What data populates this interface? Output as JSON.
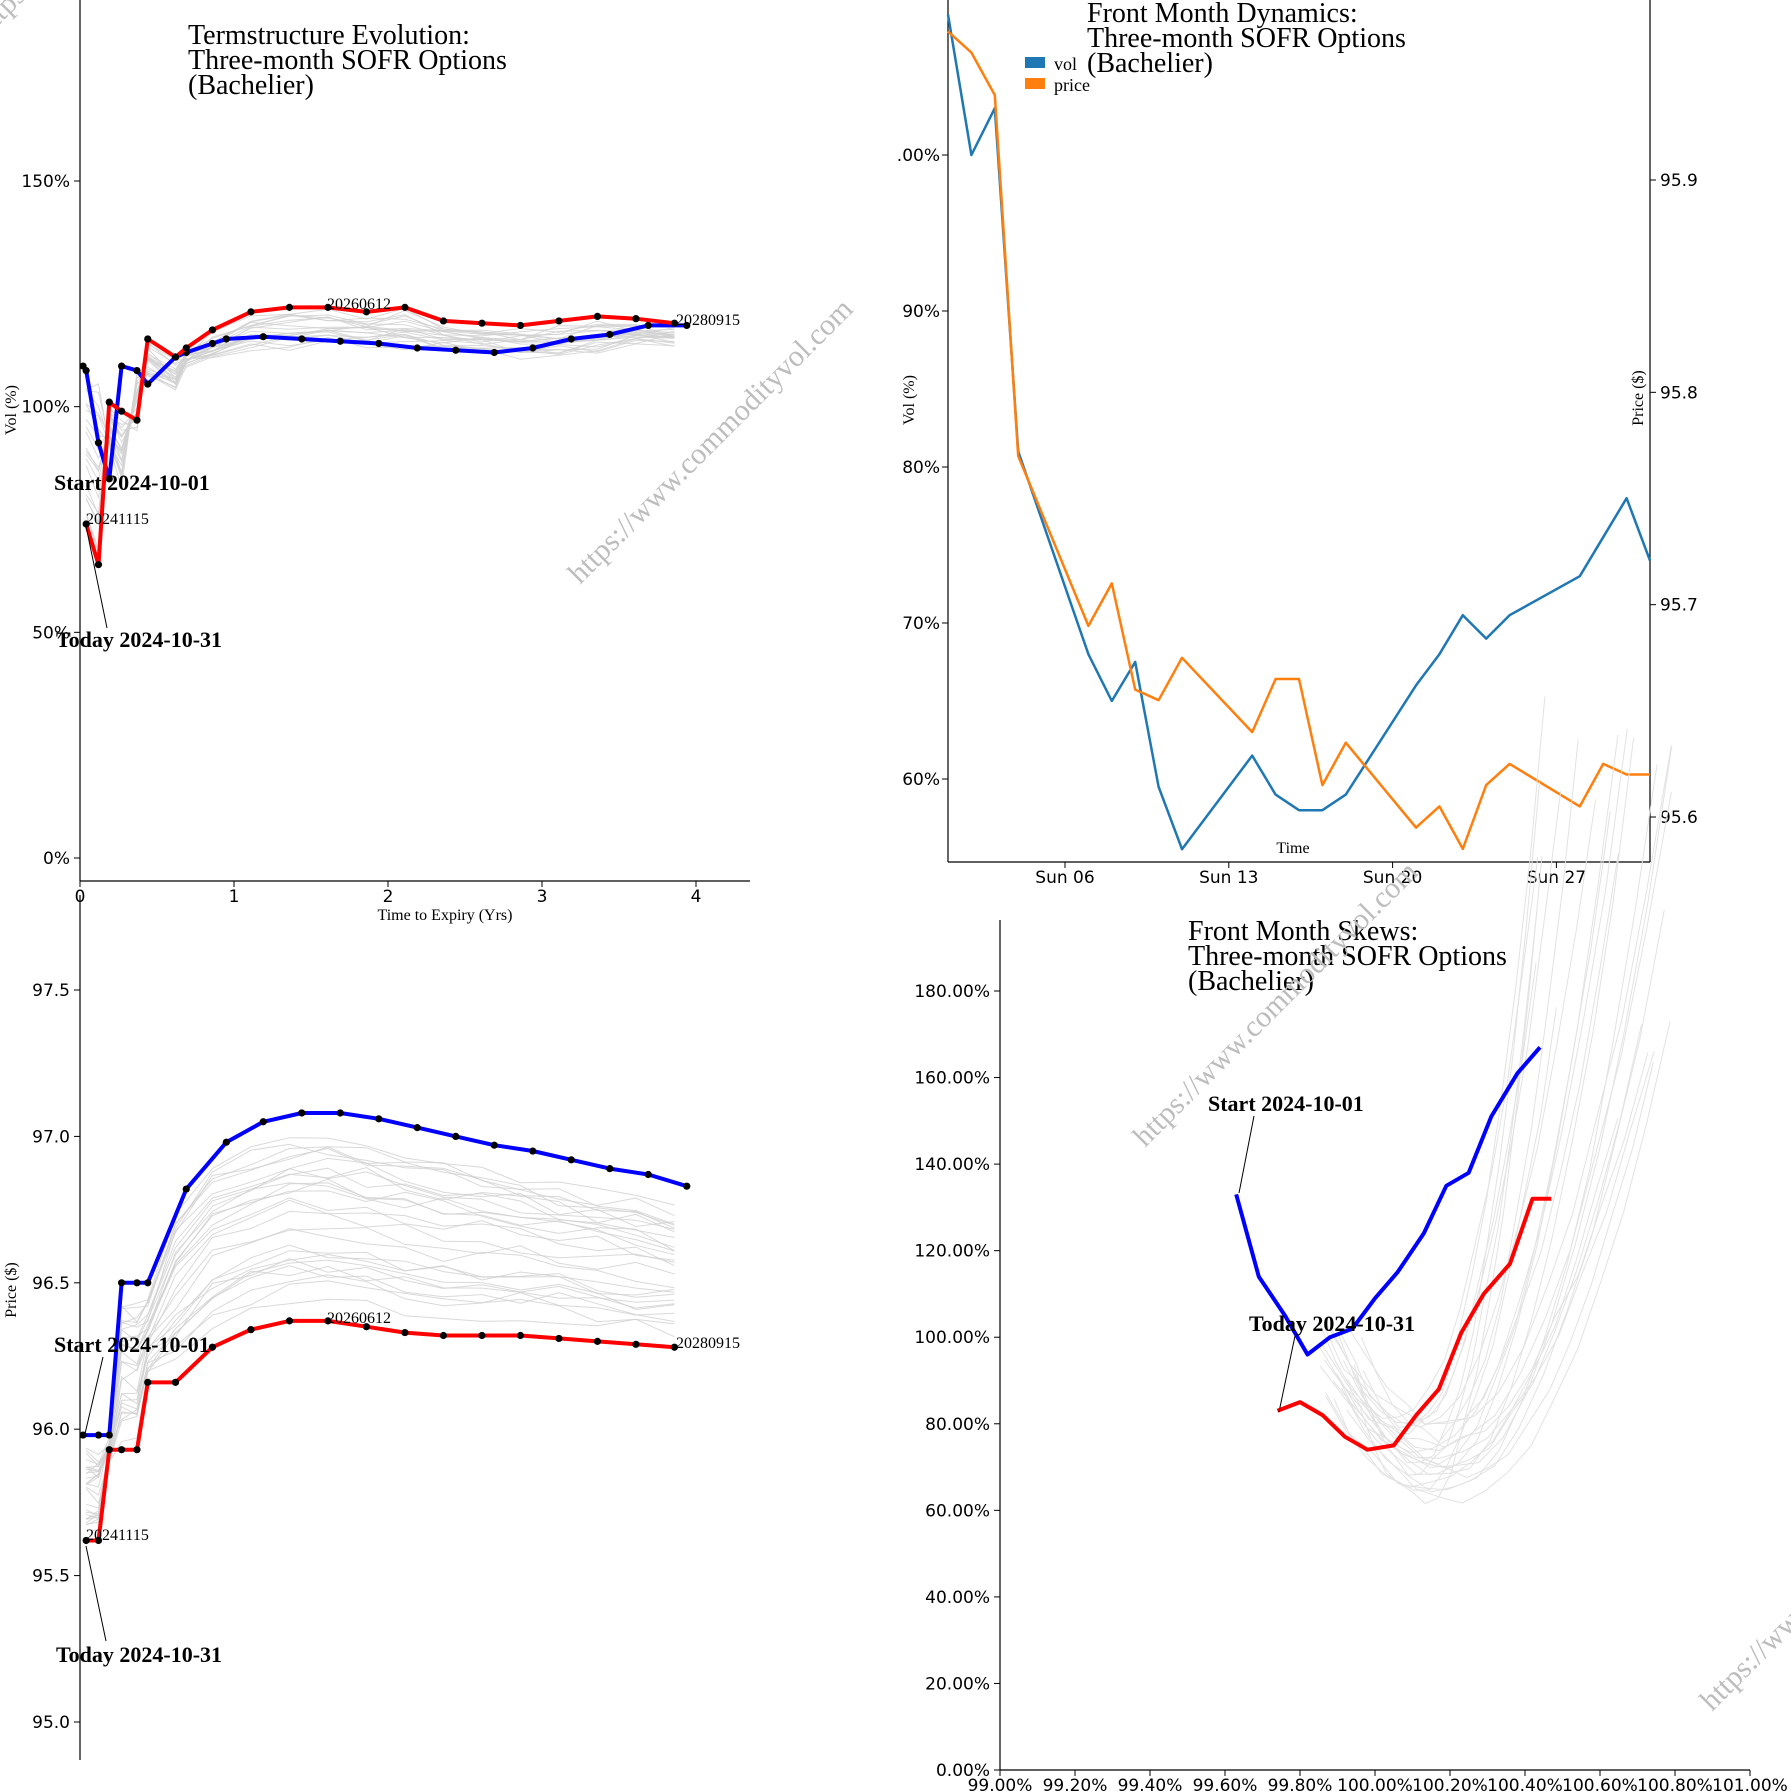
{
  "watermark": "https://www.commodityvol.com",
  "chart_data": [
    {
      "id": "vol_term",
      "type": "line",
      "title": [
        "Termstructure Evolution:",
        "Three-month SOFR Options",
        "(Bachelier)"
      ],
      "xlabel": "Time to Expiry (Yrs)",
      "ylabel": "Vol (%)",
      "xlim": [
        0,
        4.35
      ],
      "ylim": [
        0,
        1.9
      ],
      "xticks": [
        "0",
        "1",
        "2",
        "3",
        "4"
      ],
      "yticks": [
        "0%",
        "50%",
        "100%",
        "150%"
      ],
      "annotations": [
        "Start 2024-10-01",
        "Today 2024-10-31",
        "20241115",
        "20260612",
        "20280915"
      ],
      "series": [
        {
          "name": "Start 2024-10-01",
          "color": "#0000ff",
          "x": [
            0.02,
            0.04,
            0.12,
            0.19,
            0.27,
            0.37,
            0.44,
            0.62,
            0.69,
            0.86,
            0.95,
            1.19,
            1.44,
            1.69,
            1.94,
            2.19,
            2.44,
            2.69,
            2.94,
            3.19,
            3.44,
            3.69,
            3.94
          ],
          "y": [
            1.09,
            1.08,
            0.92,
            0.84,
            1.09,
            1.08,
            1.05,
            1.11,
            1.12,
            1.14,
            1.15,
            1.155,
            1.15,
            1.145,
            1.14,
            1.13,
            1.125,
            1.12,
            1.13,
            1.15,
            1.16,
            1.18,
            1.18
          ]
        },
        {
          "name": "Today 2024-10-31",
          "color": "#ff0000",
          "x": [
            0.04,
            0.12,
            0.19,
            0.27,
            0.37,
            0.44,
            0.62,
            0.69,
            0.86,
            1.11,
            1.36,
            1.61,
            1.86,
            2.11,
            2.36,
            2.61,
            2.86,
            3.11,
            3.36,
            3.61,
            3.86
          ],
          "y": [
            0.74,
            0.65,
            1.01,
            0.99,
            0.97,
            1.15,
            1.11,
            1.13,
            1.17,
            1.21,
            1.22,
            1.22,
            1.21,
            1.22,
            1.19,
            1.185,
            1.18,
            1.19,
            1.2,
            1.195,
            1.185
          ]
        }
      ]
    },
    {
      "id": "front_dynamics",
      "type": "line",
      "title": [
        "Front Month Dynamics:",
        "Three-month SOFR Options",
        "(Bachelier)"
      ],
      "xlabel": "Time",
      "ylabel": "Vol (%)",
      "y2label": "Price ($)",
      "xticks": [
        "Sun 06",
        "Sun 13",
        "Sun 20",
        "Sun 27"
      ],
      "yticks": [
        ".00%",
        "90%",
        "80%",
        "70%",
        "60%"
      ],
      "y2ticks": [
        "95.9",
        "95.8",
        "95.7",
        "95.6"
      ],
      "legend": "top-left",
      "series": [
        {
          "name": "vol",
          "color": "#1f77b4",
          "axis": "left",
          "x": [
            "2024-10-01",
            "2024-10-02",
            "2024-10-03",
            "2024-10-04",
            "2024-10-07",
            "2024-10-08",
            "2024-10-09",
            "2024-10-10",
            "2024-10-11",
            "2024-10-14",
            "2024-10-15",
            "2024-10-16",
            "2024-10-17",
            "2024-10-18",
            "2024-10-21",
            "2024-10-22",
            "2024-10-23",
            "2024-10-24",
            "2024-10-25",
            "2024-10-28",
            "2024-10-29",
            "2024-10-30",
            "2024-10-31"
          ],
          "y": [
            1.09,
            1.0,
            1.03,
            0.81,
            0.68,
            0.65,
            0.675,
            0.595,
            0.555,
            0.615,
            0.59,
            0.58,
            0.58,
            0.59,
            0.66,
            0.68,
            0.705,
            0.69,
            0.705,
            0.73,
            0.755,
            0.78,
            0.74
          ]
        },
        {
          "name": "price",
          "color": "#ff7f0e",
          "axis": "right",
          "x": [
            "2024-10-01",
            "2024-10-02",
            "2024-10-03",
            "2024-10-04",
            "2024-10-07",
            "2024-10-08",
            "2024-10-09",
            "2024-10-10",
            "2024-10-11",
            "2024-10-14",
            "2024-10-15",
            "2024-10-16",
            "2024-10-17",
            "2024-10-18",
            "2024-10-21",
            "2024-10-22",
            "2024-10-23",
            "2024-10-24",
            "2024-10-25",
            "2024-10-28",
            "2024-10-29",
            "2024-10-30",
            "2024-10-31"
          ],
          "y": [
            95.97,
            95.96,
            95.94,
            95.77,
            95.69,
            95.71,
            95.66,
            95.655,
            95.675,
            95.64,
            95.665,
            95.665,
            95.615,
            95.635,
            95.595,
            95.605,
            95.585,
            95.615,
            95.625,
            95.605,
            95.625,
            95.62,
            95.62
          ]
        }
      ]
    },
    {
      "id": "price_term",
      "type": "line",
      "title": [],
      "xlabel": "",
      "ylabel": "Price ($)",
      "xlim": [
        0,
        4.35
      ],
      "ylim": [
        94.9,
        97.6
      ],
      "yticks": [
        "97.5",
        "97.0",
        "96.5",
        "96.0",
        "95.5",
        "95.0"
      ],
      "annotations": [
        "Start 2024-10-01",
        "Today 2024-10-31",
        "20241115",
        "20260612",
        "20280915"
      ],
      "series": [
        {
          "name": "Start 2024-10-01",
          "color": "#0000ff",
          "x": [
            0.02,
            0.12,
            0.19,
            0.27,
            0.37,
            0.44,
            0.69,
            0.95,
            1.19,
            1.44,
            1.69,
            1.94,
            2.19,
            2.44,
            2.69,
            2.94,
            3.19,
            3.44,
            3.69,
            3.94
          ],
          "y": [
            95.98,
            95.98,
            95.98,
            96.5,
            96.5,
            96.5,
            96.82,
            96.98,
            97.05,
            97.08,
            97.08,
            97.06,
            97.03,
            97.0,
            96.97,
            96.95,
            96.92,
            96.89,
            96.87,
            96.83
          ]
        },
        {
          "name": "Today 2024-10-31",
          "color": "#ff0000",
          "x": [
            0.04,
            0.12,
            0.19,
            0.27,
            0.37,
            0.44,
            0.62,
            0.86,
            1.11,
            1.36,
            1.61,
            1.86,
            2.11,
            2.36,
            2.61,
            2.86,
            3.11,
            3.36,
            3.61,
            3.86
          ],
          "y": [
            95.62,
            95.62,
            95.93,
            95.93,
            95.93,
            96.16,
            96.16,
            96.28,
            96.34,
            96.37,
            96.37,
            96.35,
            96.33,
            96.32,
            96.32,
            96.32,
            96.31,
            96.3,
            96.29,
            96.28
          ]
        }
      ]
    },
    {
      "id": "front_skews",
      "type": "line",
      "title": [
        "Front Month Skews:",
        "Three-month SOFR Options",
        "(Bachelier)"
      ],
      "xlabel": "",
      "ylabel": "",
      "xlim": [
        0.99,
        1.01
      ],
      "ylim": [
        0,
        1.9
      ],
      "xticks": [
        "99.00%",
        "99.20%",
        "99.40%",
        "99.60%",
        "99.80%",
        "100.00%",
        "100.20%",
        "100.40%",
        "100.60%",
        "100.80%",
        "101.00%"
      ],
      "yticks": [
        "180.00%",
        "160.00%",
        "140.00%",
        "120.00%",
        "100.00%",
        "80.00%",
        "60.00%",
        "40.00%",
        "20.00%",
        "0.00%"
      ],
      "annotations": [
        "Start 2024-10-01",
        "Today 2024-10-31"
      ],
      "series": [
        {
          "name": "Start 2024-10-01",
          "color": "#0000ff",
          "x": [
            0.9963,
            0.9969,
            0.9976,
            0.9982,
            0.9988,
            0.9994,
            1.0,
            1.0006,
            1.0013,
            1.0019,
            1.0025,
            1.0031,
            1.0038,
            1.0044
          ],
          "y": [
            1.33,
            1.14,
            1.05,
            0.96,
            1.0,
            1.02,
            1.09,
            1.15,
            1.24,
            1.35,
            1.38,
            1.51,
            1.61,
            1.67
          ]
        },
        {
          "name": "Today 2024-10-31",
          "color": "#ff0000",
          "x": [
            0.9974,
            0.998,
            0.9986,
            0.9992,
            0.9998,
            1.0005,
            1.0011,
            1.0017,
            1.0023,
            1.0029,
            1.0036,
            1.0042,
            1.0047
          ],
          "y": [
            0.83,
            0.85,
            0.82,
            0.77,
            0.74,
            0.75,
            0.82,
            0.88,
            1.01,
            1.1,
            1.17,
            1.32,
            1.32
          ]
        }
      ]
    }
  ]
}
